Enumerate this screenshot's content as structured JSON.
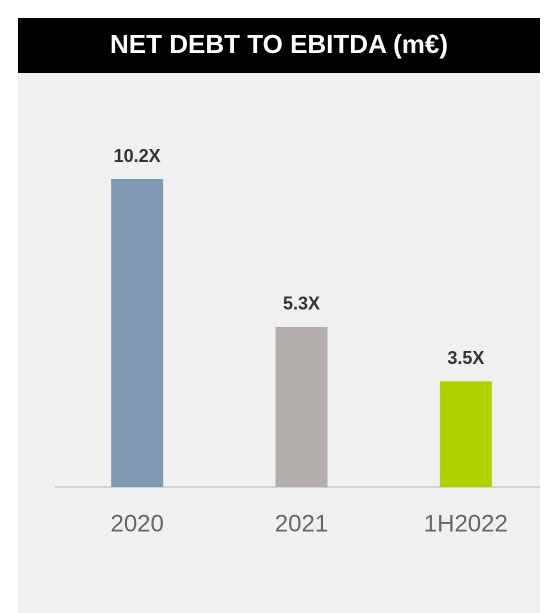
{
  "chart_data": {
    "type": "bar",
    "title": "NET DEBT TO EBITDA (m€)",
    "categories": [
      "2020",
      "2021",
      "1H2022"
    ],
    "values": [
      10.2,
      5.3,
      3.5
    ],
    "value_labels": [
      "10.2X",
      "5.3X",
      "3.5X"
    ],
    "colors": [
      "#8099b3",
      "#b3adac",
      "#b0d000"
    ]
  }
}
